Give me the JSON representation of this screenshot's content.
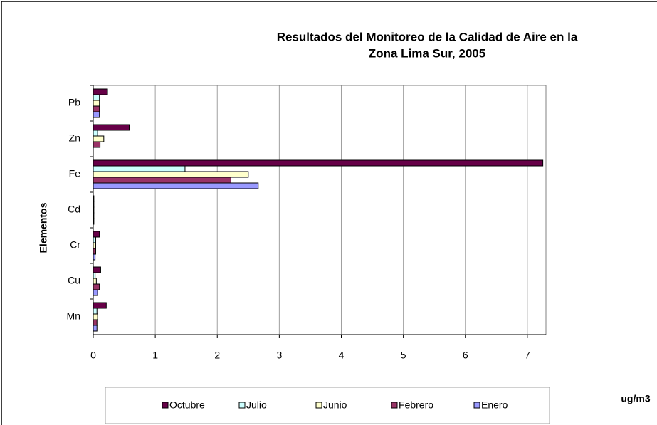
{
  "chart_data": {
    "type": "hbar",
    "title": [
      "Resultados del Monitoreo de la Calidad de Aire en la",
      "Zona Lima Sur, 2005"
    ],
    "y_label": "Elementos",
    "x_unit": "ug/m3",
    "categories": [
      "Pb",
      "Zn",
      "Fe",
      "Cd",
      "Cr",
      "Cu",
      "Mn"
    ],
    "series": [
      {
        "name": "Octubre",
        "color": "#660047",
        "values": [
          0.23,
          0.58,
          7.25,
          0.01,
          0.1,
          0.12,
          0.21
        ]
      },
      {
        "name": "Julio",
        "color": "#ccffff",
        "values": [
          0.1,
          0.07,
          1.48,
          0.01,
          0.04,
          0.03,
          0.06
        ]
      },
      {
        "name": "Junio",
        "color": "#ffffcc",
        "values": [
          0.1,
          0.17,
          2.5,
          0.01,
          0.04,
          0.05,
          0.07
        ]
      },
      {
        "name": "Febrero",
        "color": "#993366",
        "values": [
          0.1,
          0.11,
          2.22,
          0.01,
          0.04,
          0.1,
          0.06
        ]
      },
      {
        "name": "Enero",
        "color": "#9999ff",
        "values": [
          0.1,
          0,
          2.66,
          0.01,
          0.03,
          0.07,
          0.06
        ]
      }
    ],
    "xlim": [
      0,
      7.3
    ],
    "xticks": [
      0,
      1,
      2,
      3,
      4,
      5,
      6,
      7
    ],
    "grid": true,
    "legend": "bottom"
  }
}
